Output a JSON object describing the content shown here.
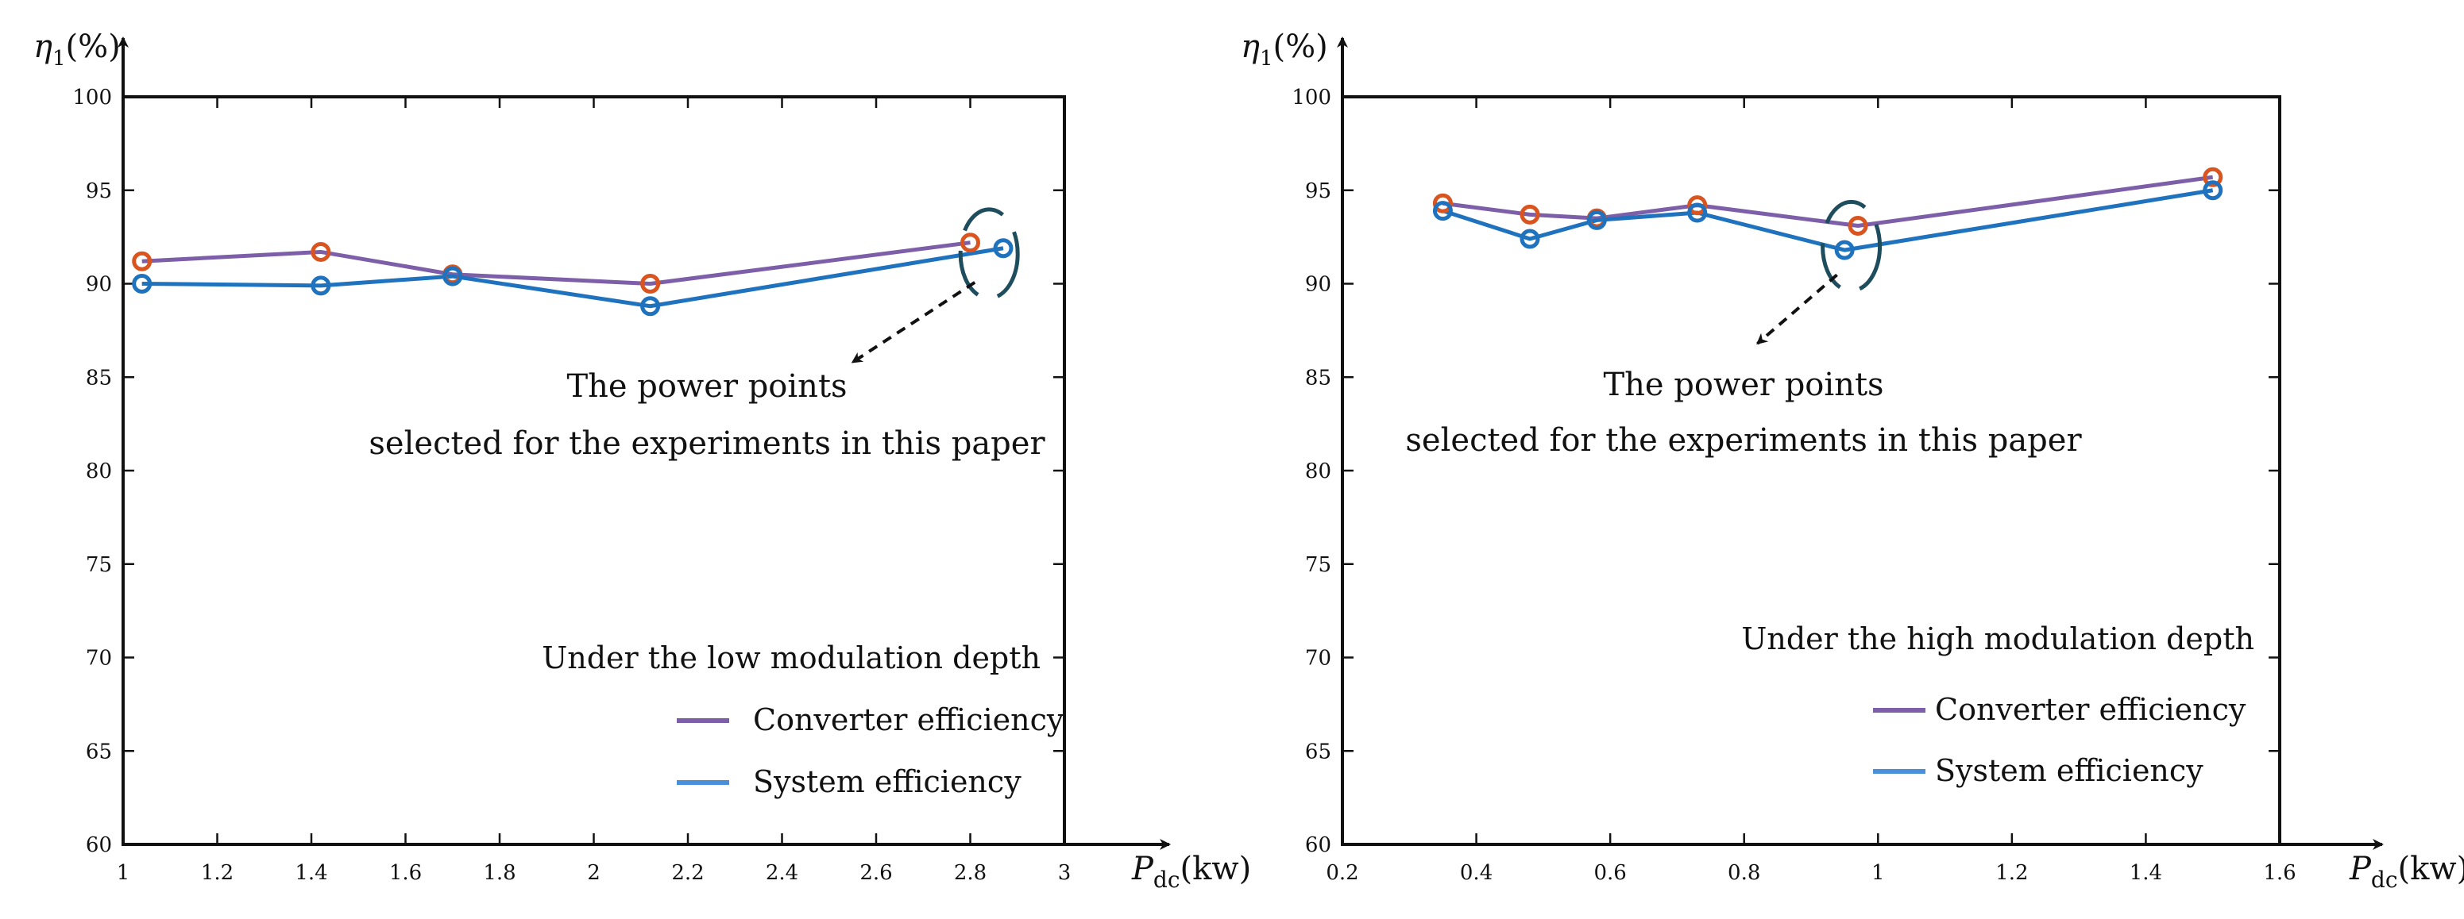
{
  "chart_data": [
    {
      "type": "line",
      "ylabel_sym": "η",
      "ylabel_sub": "1",
      "ylabel_unit": "(%)",
      "xlabel_sym": "P",
      "xlabel_sub": "dc",
      "xlabel_unit": "(kw)",
      "xlim": [
        1,
        3
      ],
      "ylim": [
        60,
        100
      ],
      "xticks": [
        1,
        1.2,
        1.4,
        1.6,
        1.8,
        2,
        2.2,
        2.4,
        2.6,
        2.8,
        3
      ],
      "xtick_labels": [
        "1",
        "1.2",
        "1.4",
        "1.6",
        "1.8",
        "2",
        "2.2",
        "2.4",
        "2.6",
        "2.8",
        "3"
      ],
      "yticks": [
        60,
        65,
        70,
        75,
        80,
        85,
        90,
        95,
        100
      ],
      "ytick_labels": [
        "60",
        "65",
        "70",
        "75",
        "80",
        "85",
        "90",
        "95",
        "100"
      ],
      "series": [
        {
          "name": "Converter efficiency",
          "color": "#7d5ea8",
          "marker_color": "#d9541e",
          "x": [
            1.04,
            1.42,
            1.7,
            2.12,
            2.8
          ],
          "y": [
            91.2,
            91.7,
            90.5,
            90.0,
            92.2
          ]
        },
        {
          "name": "System efficiency",
          "color": "#1f72bd",
          "marker_color": "#1f72bd",
          "x": [
            1.04,
            1.42,
            1.7,
            2.12,
            2.87
          ],
          "y": [
            90.0,
            89.9,
            90.4,
            88.8,
            91.9
          ]
        }
      ],
      "legend_title": "Under the low modulation depth",
      "legend_items": [
        "Converter efficiency",
        "System efficiency"
      ],
      "annotation_lines": [
        "The power points",
        "selected for the experiments in this paper"
      ],
      "highlight_x": 2.84,
      "highlight_y": 91.6,
      "arrow_to": [
        2.55,
        85.8
      ]
    },
    {
      "type": "line",
      "ylabel_sym": "η",
      "ylabel_sub": "1",
      "ylabel_unit": "(%)",
      "xlabel_sym": "P",
      "xlabel_sub": "dc",
      "xlabel_unit": "(kw)",
      "xlim": [
        0.2,
        1.6
      ],
      "ylim": [
        60,
        100
      ],
      "xticks": [
        0.2,
        0.4,
        0.6,
        0.8,
        1,
        1.2,
        1.4,
        1.6
      ],
      "xtick_labels": [
        "0.2",
        "0.4",
        "0.6",
        "0.8",
        "1",
        "1.2",
        "1.4",
        "1.6"
      ],
      "yticks": [
        60,
        65,
        70,
        75,
        80,
        85,
        90,
        95,
        100
      ],
      "ytick_labels": [
        "60",
        "65",
        "70",
        "75",
        "80",
        "85",
        "90",
        "95",
        "100"
      ],
      "series": [
        {
          "name": "Converter efficiency",
          "color": "#7d5ea8",
          "marker_color": "#d9541e",
          "x": [
            0.35,
            0.48,
            0.58,
            0.73,
            0.97,
            1.5
          ],
          "y": [
            94.3,
            93.7,
            93.5,
            94.2,
            93.1,
            95.7
          ]
        },
        {
          "name": "System efficiency",
          "color": "#1f72bd",
          "marker_color": "#1f72bd",
          "x": [
            0.35,
            0.48,
            0.58,
            0.73,
            0.95,
            1.5
          ],
          "y": [
            93.9,
            92.4,
            93.4,
            93.8,
            91.8,
            95.0
          ]
        }
      ],
      "legend_title": "Under the high modulation depth",
      "legend_items": [
        "Converter efficiency",
        "System efficiency"
      ],
      "annotation_lines": [
        "The power points",
        "selected for the experiments in this paper"
      ],
      "highlight_x": 0.96,
      "highlight_y": 92.0,
      "arrow_to": [
        0.82,
        86.8
      ]
    }
  ]
}
